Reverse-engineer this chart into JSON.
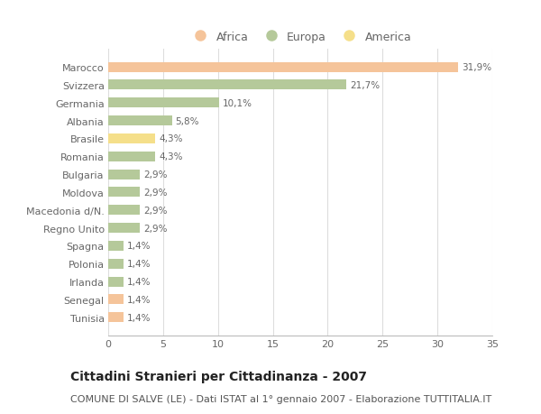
{
  "countries": [
    "Tunisia",
    "Senegal",
    "Irlanda",
    "Polonia",
    "Spagna",
    "Regno Unito",
    "Macedonia d/N.",
    "Moldova",
    "Bulgaria",
    "Romania",
    "Brasile",
    "Albania",
    "Germania",
    "Svizzera",
    "Marocco"
  ],
  "values": [
    1.4,
    1.4,
    1.4,
    1.4,
    1.4,
    2.9,
    2.9,
    2.9,
    2.9,
    4.3,
    4.3,
    5.8,
    10.1,
    21.7,
    31.9
  ],
  "labels": [
    "1,4%",
    "1,4%",
    "1,4%",
    "1,4%",
    "1,4%",
    "2,9%",
    "2,9%",
    "2,9%",
    "2,9%",
    "4,3%",
    "4,3%",
    "5,8%",
    "10,1%",
    "21,7%",
    "31,9%"
  ],
  "continents": [
    "Africa",
    "Africa",
    "Europa",
    "Europa",
    "Europa",
    "Europa",
    "Europa",
    "Europa",
    "Europa",
    "Europa",
    "America",
    "Europa",
    "Europa",
    "Europa",
    "Africa"
  ],
  "colors": {
    "Africa": "#F5C49A",
    "Europa": "#B5C99A",
    "America": "#F5DF8A"
  },
  "xlim": [
    0,
    35
  ],
  "xticks": [
    0,
    5,
    10,
    15,
    20,
    25,
    30,
    35
  ],
  "title": "Cittadini Stranieri per Cittadinanza - 2007",
  "subtitle": "COMUNE DI SALVE (LE) - Dati ISTAT al 1° gennaio 2007 - Elaborazione TUTTITALIA.IT",
  "background_color": "#FFFFFF",
  "bar_height": 0.55,
  "title_fontsize": 10,
  "subtitle_fontsize": 8,
  "label_fontsize": 7.5,
  "ytick_fontsize": 8,
  "xtick_fontsize": 8,
  "legend_fontsize": 9,
  "legend_labels": [
    "Africa",
    "Europa",
    "America"
  ]
}
